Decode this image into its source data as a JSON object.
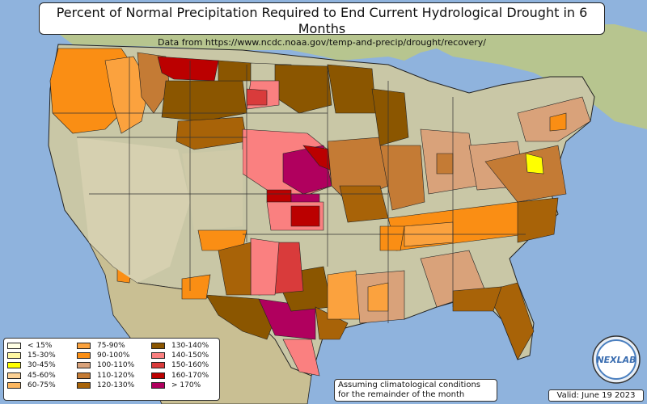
{
  "title": "Percent of Normal Precipitation Required to End Current Hydrological Drought in 6 Months",
  "subtitle": "Data from https://www.ncdc.noaa.gov/temp-and-precip/drought/recovery/",
  "legend": [
    {
      "label": "< 15%",
      "color": "#ffffe5"
    },
    {
      "label": "15-30%",
      "color": "#fdf6a2"
    },
    {
      "label": "30-45%",
      "color": "#ffff00"
    },
    {
      "label": "45-60%",
      "color": "#fcd195"
    },
    {
      "label": "60-75%",
      "color": "#fcb760"
    },
    {
      "label": "75-90%",
      "color": "#fba23e"
    },
    {
      "label": "90-100%",
      "color": "#fa8e14"
    },
    {
      "label": "100-110%",
      "color": "#d9a27a"
    },
    {
      "label": "110-120%",
      "color": "#c47b35"
    },
    {
      "label": "120-130%",
      "color": "#a86308"
    },
    {
      "label": "130-140%",
      "color": "#8b5600"
    },
    {
      "label": "140-150%",
      "color": "#fa8080"
    },
    {
      "label": "150-160%",
      "color": "#d93b3b"
    },
    {
      "label": "160-170%",
      "color": "#bb0000"
    },
    {
      "label": "> 170%",
      "color": "#b0005e"
    }
  ],
  "note": "Assuming climatological conditions for the remainder of the month",
  "valid": "Valid: June 19 2023",
  "logo_text": "NEXLAB",
  "colors": {
    "ocean": "#8fb3dd",
    "land": "#c9c7a6",
    "canada": "#b7c58f",
    "mexico": "#c9bf93"
  }
}
